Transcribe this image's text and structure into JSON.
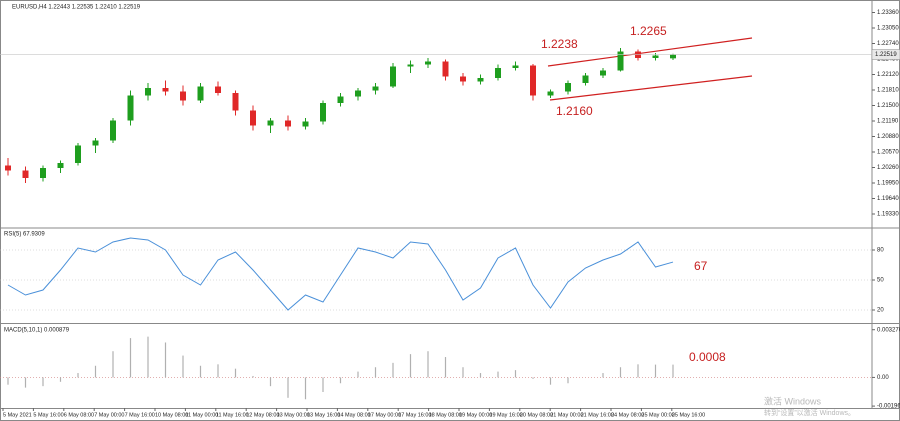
{
  "chart_data": [
    {
      "type": "candlestick",
      "title": "EURUSD,H4  1.22443 1.22535 1.22410 1.22519",
      "open": [
        1.203,
        1.202,
        1.2005,
        1.2025,
        1.2035,
        1.207,
        1.208,
        1.212,
        1.217,
        1.2185,
        1.2178,
        1.216,
        1.2188,
        1.2175,
        1.214,
        1.211,
        1.212,
        1.2108,
        1.2118,
        1.2155,
        1.2168,
        1.218,
        1.2188,
        1.2228,
        1.2232,
        1.2238,
        1.2208,
        1.2198,
        1.2205,
        1.2225,
        1.223,
        1.217,
        1.2178,
        1.2195,
        1.221,
        1.222,
        1.2258,
        1.2245,
        1.22443
      ],
      "high": [
        1.2045,
        1.2028,
        1.203,
        1.204,
        1.2075,
        1.2085,
        1.2125,
        1.218,
        1.2195,
        1.22,
        1.219,
        1.2195,
        1.2198,
        1.218,
        1.215,
        1.2125,
        1.213,
        1.2125,
        1.216,
        1.2175,
        1.2185,
        1.2195,
        1.2235,
        1.224,
        1.2245,
        1.2242,
        1.2215,
        1.2212,
        1.2232,
        1.2238,
        1.2233,
        1.2182,
        1.22,
        1.2215,
        1.2225,
        1.2265,
        1.2262,
        1.2255,
        1.22535
      ],
      "low": [
        1.201,
        1.1995,
        1.1998,
        1.2015,
        1.203,
        1.2055,
        1.2075,
        1.211,
        1.216,
        1.217,
        1.215,
        1.2155,
        1.217,
        1.213,
        1.21,
        1.2095,
        1.21,
        1.2102,
        1.2112,
        1.2148,
        1.216,
        1.2172,
        1.2185,
        1.2215,
        1.2225,
        1.22,
        1.219,
        1.2192,
        1.22,
        1.222,
        1.216,
        1.2165,
        1.2172,
        1.219,
        1.2205,
        1.2218,
        1.224,
        1.224,
        1.2241
      ],
      "close": [
        1.202,
        1.2005,
        1.2025,
        1.2035,
        1.207,
        1.208,
        1.212,
        1.217,
        1.2185,
        1.2178,
        1.216,
        1.2188,
        1.2175,
        1.214,
        1.211,
        1.212,
        1.2108,
        1.2118,
        1.2155,
        1.2168,
        1.218,
        1.2188,
        1.2228,
        1.2232,
        1.2238,
        1.2208,
        1.2198,
        1.2205,
        1.2225,
        1.223,
        1.217,
        1.2178,
        1.2195,
        1.221,
        1.222,
        1.2258,
        1.2245,
        1.225,
        1.22519
      ],
      "up_color": "#1e9e1e",
      "down_color": "#e02828",
      "last_price_label": "1.22519",
      "annotations": [
        "1.2238",
        "1.2265",
        "1.2160"
      ],
      "ylim": [
        1.1909,
        1.2357
      ],
      "yticks": [
        {
          "value": 1.1933,
          "label": "1.19330"
        },
        {
          "value": 1.1964,
          "label": "1.19640"
        },
        {
          "value": 1.1995,
          "label": "1.19950"
        },
        {
          "value": 1.2026,
          "label": "1.20260"
        },
        {
          "value": 1.2057,
          "label": "1.20570"
        },
        {
          "value": 1.2088,
          "label": "1.20880"
        },
        {
          "value": 1.2119,
          "label": "1.21190"
        },
        {
          "value": 1.215,
          "label": "1.21500"
        },
        {
          "value": 1.2181,
          "label": "1.21810"
        },
        {
          "value": 1.2212,
          "label": "1.22120"
        },
        {
          "value": 1.2243,
          "label": "1.22430"
        },
        {
          "value": 1.2274,
          "label": "1.22740"
        },
        {
          "value": 1.2305,
          "label": "1.23050"
        },
        {
          "value": 1.2336,
          "label": "1.23360"
        }
      ]
    },
    {
      "type": "line",
      "title": "RSI(5) 67.9309",
      "color": "#4a90d9",
      "values": [
        45,
        35,
        40,
        60,
        82,
        78,
        88,
        92,
        90,
        80,
        55,
        45,
        70,
        78,
        60,
        40,
        20,
        35,
        28,
        55,
        82,
        78,
        72,
        88,
        86,
        60,
        30,
        42,
        72,
        82,
        45,
        22,
        48,
        62,
        70,
        76,
        88,
        63,
        67.93
      ],
      "annotations": [
        "67"
      ],
      "ylim": [
        8,
        100
      ],
      "yticks": [
        20,
        50,
        80
      ],
      "grid": true
    },
    {
      "type": "bar",
      "title": "MACD(5,10,1) 0.000879",
      "color": "#b0b0b0",
      "values": [
        -0.0005,
        -0.0007,
        -0.0006,
        -0.0003,
        0.0003,
        0.0008,
        0.0018,
        0.0027,
        0.0028,
        0.0024,
        0.0015,
        0.0008,
        0.0009,
        0.0006,
        0.0001,
        -0.0006,
        -0.0014,
        -0.0015,
        -0.001,
        -0.0004,
        0.0004,
        0.0007,
        0.001,
        0.0016,
        0.0018,
        0.0014,
        0.0007,
        0.0003,
        0.0004,
        0.0005,
        -0.0001,
        -0.0005,
        -0.0004,
        0,
        0.0003,
        0.0007,
        0.0009,
        0.00088,
        0.000879
      ],
      "annotations": [
        "0.0008"
      ],
      "ylim": [
        -0.0021,
        0.0036
      ],
      "yticks": [
        {
          "value": -0.001969,
          "label": "-0.001969"
        },
        {
          "value": 0,
          "label": "0.00"
        },
        0.003276
      ]
    }
  ],
  "time_labels": [
    "5 May 2021",
    "5 May 16:00",
    "6 May 08:00",
    "7 May 00:00",
    "7 May 16:00",
    "10 May 08:00",
    "11 May 00:00",
    "11 May 16:00",
    "12 May 08:00",
    "13 May 00:00",
    "13 May 16:00",
    "14 May 08:00",
    "17 May 00:00",
    "17 May 16:00",
    "18 May 08:00",
    "19 May 00:00",
    "19 May 16:00",
    "20 May 08:00",
    "21 May 00:00",
    "21 May 16:00",
    "24 May 08:00",
    "25 May 00:00",
    "25 May 16:00"
  ],
  "watermark": [
    "激活 Windows",
    "转到“设置”以激活 Windows。"
  ]
}
